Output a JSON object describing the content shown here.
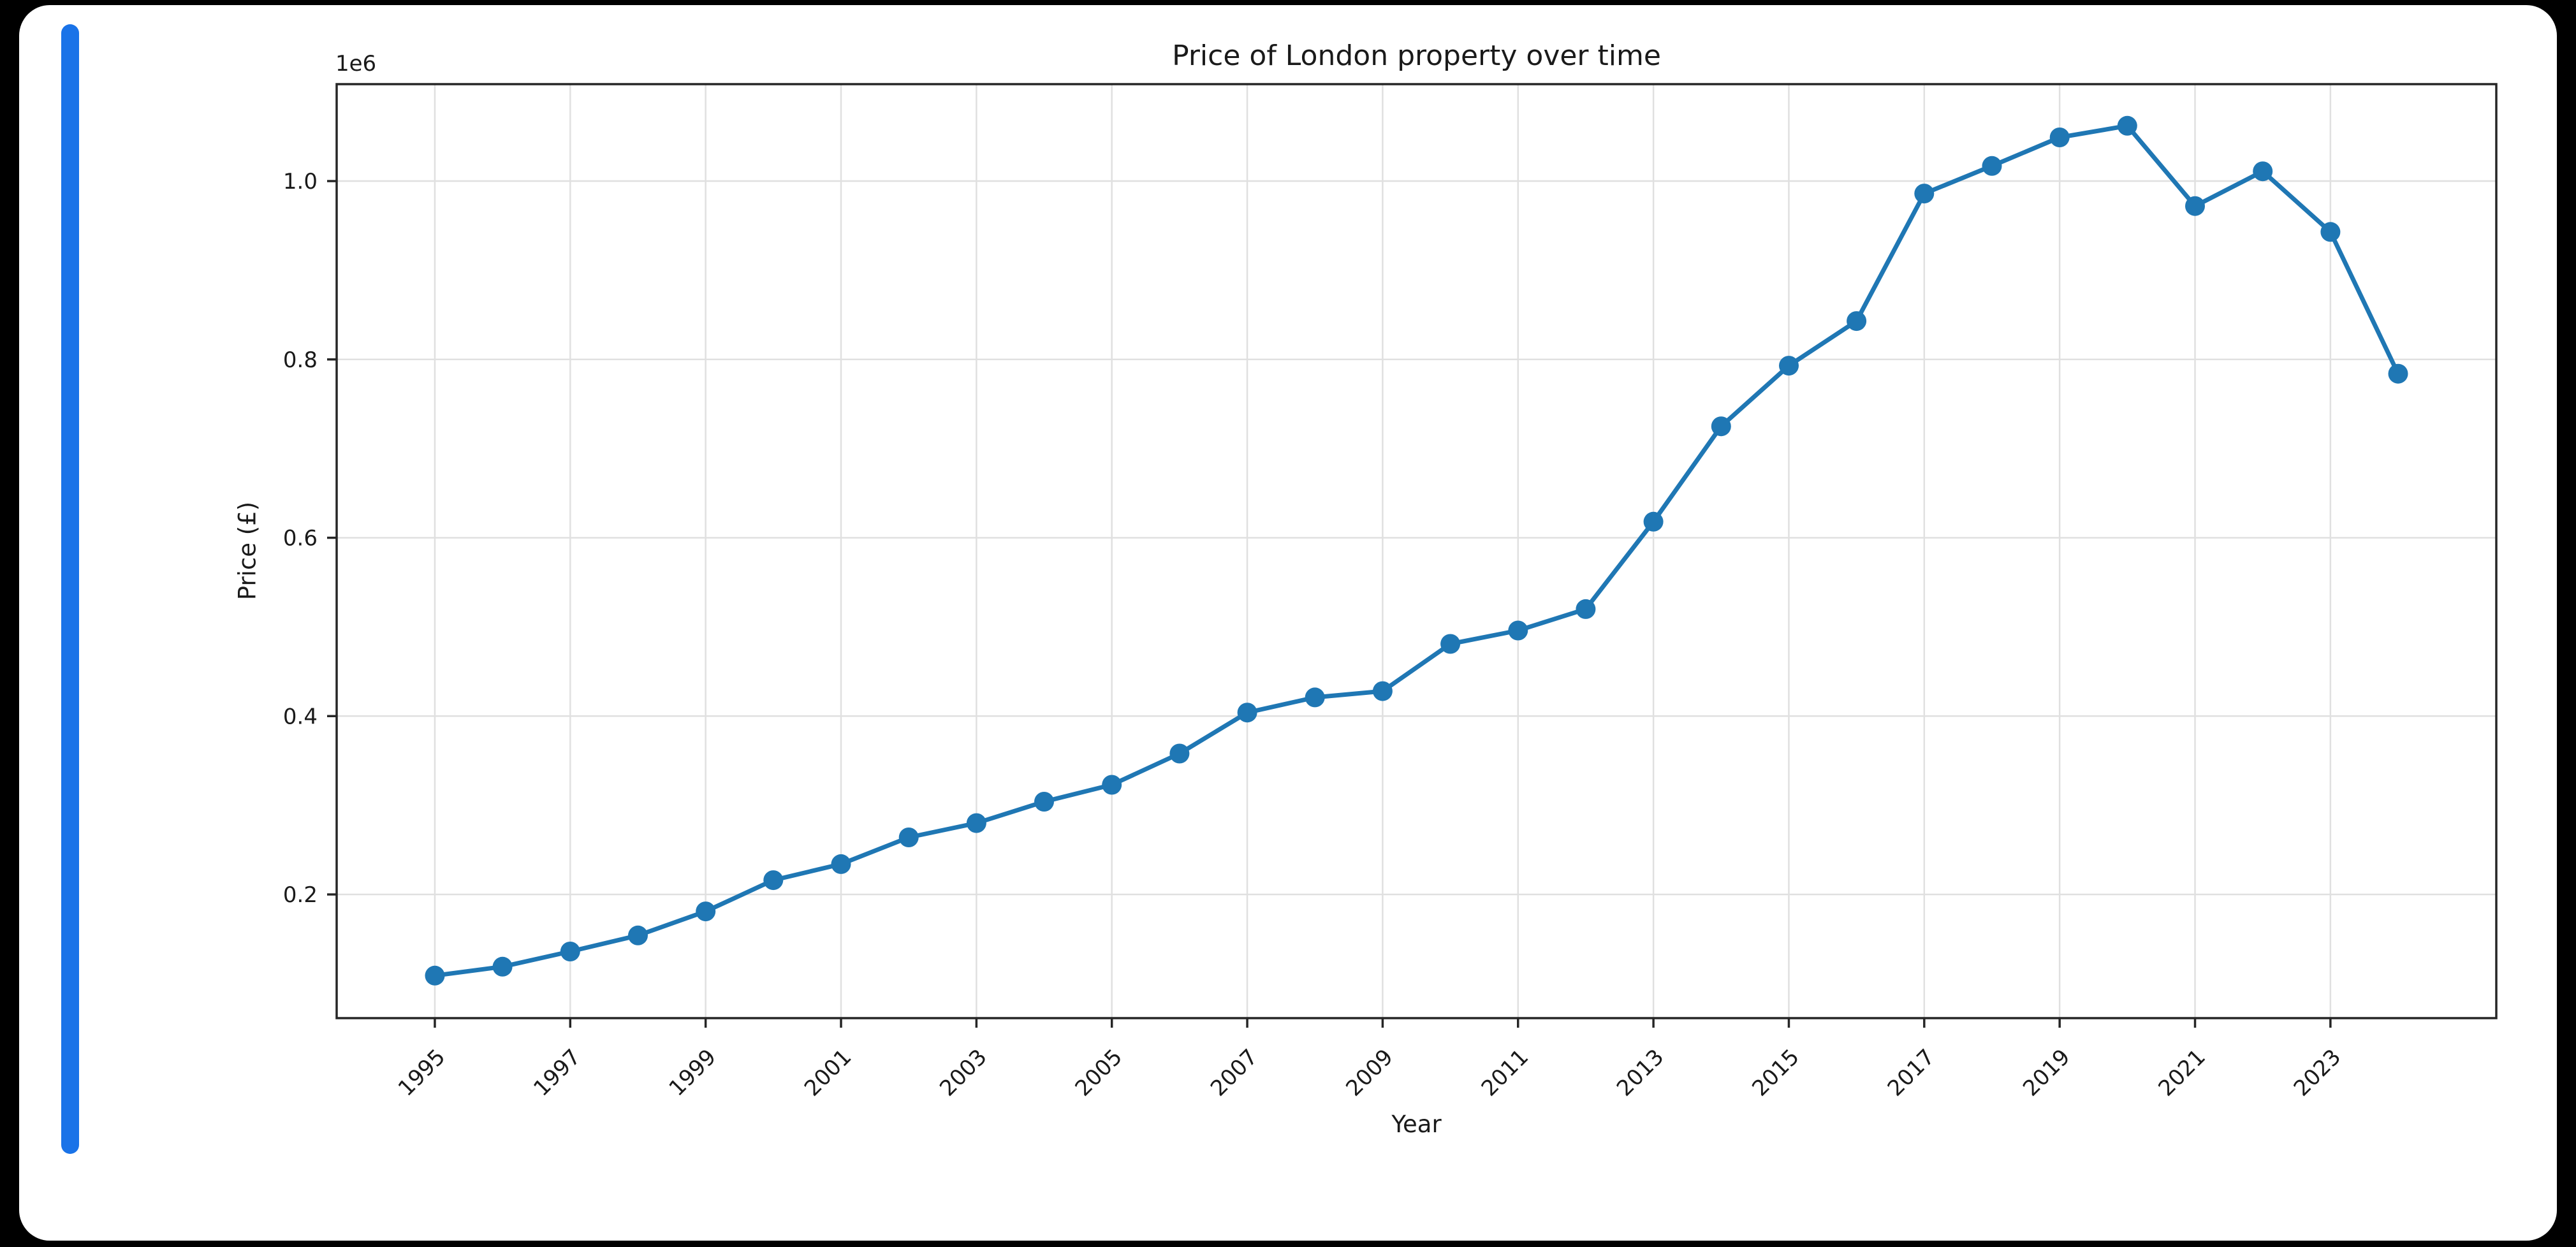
{
  "page": {
    "background_color": "#000000",
    "card_color": "#ffffff",
    "accent_bar_color": "#1a73e8"
  },
  "chart_data": {
    "type": "line",
    "title": "Price of London property over time",
    "xlabel": "Year",
    "ylabel": "Price (£)",
    "y_offset_label": "1e6",
    "grid": true,
    "legend": false,
    "marker": "o",
    "line_color": "#1f77b4",
    "grid_color": "#e0e0e0",
    "axis_color": "#262626",
    "xlim": [
      1993.55,
      2025.45
    ],
    "ylim": [
      61300,
      1108700
    ],
    "x_tick_values": [
      1995,
      1997,
      1999,
      2001,
      2003,
      2005,
      2007,
      2009,
      2011,
      2013,
      2015,
      2017,
      2019,
      2021,
      2023
    ],
    "x_tick_labels": [
      "1995",
      "1997",
      "1999",
      "2001",
      "2003",
      "2005",
      "2007",
      "2009",
      "2011",
      "2013",
      "2015",
      "2017",
      "2019",
      "2021",
      "2023"
    ],
    "y_tick_values": [
      200000,
      400000,
      600000,
      800000,
      1000000
    ],
    "y_tick_labels": [
      "0.2",
      "0.4",
      "0.6",
      "0.8",
      "1.0"
    ],
    "series": {
      "x": [
        1995,
        1996,
        1997,
        1998,
        1999,
        2000,
        2001,
        2002,
        2003,
        2004,
        2005,
        2006,
        2007,
        2008,
        2009,
        2010,
        2011,
        2012,
        2013,
        2014,
        2015,
        2016,
        2017,
        2018,
        2019,
        2020,
        2021,
        2022,
        2023,
        2024
      ],
      "values": [
        109000,
        119000,
        136000,
        154000,
        181000,
        216000,
        234000,
        264000,
        280000,
        304000,
        323000,
        358000,
        404000,
        421000,
        428000,
        481000,
        496000,
        520000,
        618000,
        725000,
        793000,
        843000,
        986000,
        1017000,
        1049000,
        1062000,
        972000,
        1011000,
        943000,
        784000
      ]
    }
  }
}
